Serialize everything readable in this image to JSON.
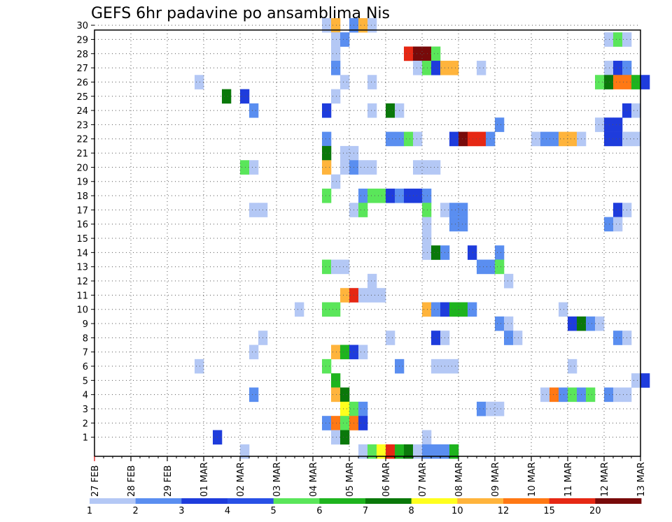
{
  "chart_data": {
    "type": "heatmap",
    "title": "GEFS 6hr padavine po ansamblima Nis",
    "xlabel": "",
    "ylabel": "",
    "x_tick_labels": [
      "27 FEB",
      "28 FEB",
      "29 FEB",
      "01 MAR",
      "02 MAR",
      "03 MAR",
      "04 MAR",
      "05 MAR",
      "06 MAR",
      "07 MAR",
      "08 MAR",
      "09 MAR",
      "10 MAR",
      "11 MAR",
      "12 MAR",
      "13 MAR"
    ],
    "y_tick_labels": [
      "1",
      "2",
      "3",
      "4",
      "5",
      "6",
      "7",
      "8",
      "9",
      "10",
      "11",
      "12",
      "13",
      "14",
      "15",
      "16",
      "17",
      "18",
      "19",
      "20",
      "21",
      "22",
      "23",
      "24",
      "25",
      "26",
      "27",
      "28",
      "29",
      "30"
    ],
    "x_unit": "6-hour step (4 steps per day), step 0 = 27 FEB 00Z",
    "ylim": [
      0,
      30
    ],
    "xlim": [
      0,
      60
    ],
    "grid": true,
    "legend": {
      "labels": [
        "1",
        "2",
        "3",
        "4",
        "5",
        "6",
        "7",
        "8",
        "10",
        "12",
        "15",
        "20"
      ],
      "colors": [
        "#b4c8f5",
        "#5a8ef0",
        "#1e3cdc",
        "#2850e6",
        "#5ae65a",
        "#1eb41e",
        "#0a780a",
        "#ffff1e",
        "#ffb43c",
        "#ff7814",
        "#e62814",
        "#780a0a"
      ]
    },
    "levels": [
      "#b4c8f5",
      "#5a8ef0",
      "#1e3cdc",
      "#5ae65a",
      "#1eb41e",
      "#0a780a",
      "#ffff1e",
      "#ffb43c",
      "#ff7814",
      "#e62814",
      "#780a0a"
    ],
    "cells": [
      [
        30,
        25,
        0
      ],
      [
        30,
        26,
        7
      ],
      [
        30,
        28,
        1
      ],
      [
        30,
        29,
        7
      ],
      [
        30,
        30,
        0
      ],
      [
        29,
        26,
        0
      ],
      [
        29,
        27,
        1
      ],
      [
        29,
        56,
        0
      ],
      [
        29,
        57,
        3
      ],
      [
        29,
        58,
        0
      ],
      [
        28,
        26,
        0
      ],
      [
        28,
        34,
        9
      ],
      [
        28,
        35,
        10
      ],
      [
        28,
        36,
        10
      ],
      [
        28,
        37,
        3
      ],
      [
        27,
        26,
        1
      ],
      [
        27,
        35,
        0
      ],
      [
        27,
        36,
        3
      ],
      [
        27,
        37,
        2
      ],
      [
        27,
        38,
        7
      ],
      [
        27,
        39,
        7
      ],
      [
        27,
        42,
        0
      ],
      [
        27,
        56,
        0
      ],
      [
        27,
        57,
        2
      ],
      [
        27,
        58,
        1
      ],
      [
        26,
        11,
        0
      ],
      [
        26,
        27,
        0
      ],
      [
        26,
        30,
        0
      ],
      [
        26,
        55,
        3
      ],
      [
        26,
        56,
        5
      ],
      [
        26,
        57,
        8
      ],
      [
        26,
        58,
        8
      ],
      [
        26,
        59,
        4
      ],
      [
        26,
        60,
        2
      ],
      [
        25,
        14,
        5
      ],
      [
        25,
        16,
        2
      ],
      [
        25,
        26,
        0
      ],
      [
        24,
        17,
        1
      ],
      [
        24,
        25,
        2
      ],
      [
        24,
        30,
        0
      ],
      [
        24,
        32,
        5
      ],
      [
        24,
        33,
        0
      ],
      [
        24,
        58,
        2
      ],
      [
        24,
        59,
        0
      ],
      [
        23,
        44,
        1
      ],
      [
        23,
        55,
        0
      ],
      [
        23,
        56,
        2
      ],
      [
        23,
        57,
        2
      ],
      [
        22,
        25,
        1
      ],
      [
        22,
        32,
        1
      ],
      [
        22,
        33,
        1
      ],
      [
        22,
        34,
        3
      ],
      [
        22,
        35,
        0
      ],
      [
        22,
        39,
        2
      ],
      [
        22,
        40,
        10
      ],
      [
        22,
        41,
        9
      ],
      [
        22,
        42,
        9
      ],
      [
        22,
        43,
        1
      ],
      [
        22,
        48,
        0
      ],
      [
        22,
        49,
        1
      ],
      [
        22,
        50,
        1
      ],
      [
        22,
        51,
        7
      ],
      [
        22,
        52,
        7
      ],
      [
        22,
        53,
        0
      ],
      [
        22,
        56,
        2
      ],
      [
        22,
        57,
        2
      ],
      [
        22,
        58,
        0
      ],
      [
        22,
        59,
        0
      ],
      [
        21,
        25,
        5
      ],
      [
        21,
        27,
        0
      ],
      [
        21,
        28,
        0
      ],
      [
        20,
        16,
        3
      ],
      [
        20,
        17,
        0
      ],
      [
        20,
        25,
        7
      ],
      [
        20,
        27,
        0
      ],
      [
        20,
        28,
        1
      ],
      [
        20,
        29,
        0
      ],
      [
        20,
        30,
        0
      ],
      [
        20,
        35,
        0
      ],
      [
        20,
        36,
        0
      ],
      [
        20,
        37,
        0
      ],
      [
        19,
        26,
        0
      ],
      [
        18,
        25,
        3
      ],
      [
        18,
        29,
        1
      ],
      [
        18,
        30,
        3
      ],
      [
        18,
        31,
        3
      ],
      [
        18,
        32,
        2
      ],
      [
        18,
        33,
        1
      ],
      [
        18,
        34,
        2
      ],
      [
        18,
        35,
        2
      ],
      [
        18,
        36,
        1
      ],
      [
        17,
        17,
        0
      ],
      [
        17,
        18,
        0
      ],
      [
        17,
        28,
        0
      ],
      [
        17,
        29,
        3
      ],
      [
        17,
        36,
        3
      ],
      [
        17,
        38,
        0
      ],
      [
        17,
        39,
        1
      ],
      [
        17,
        40,
        1
      ],
      [
        17,
        57,
        2
      ],
      [
        17,
        58,
        0
      ],
      [
        16,
        36,
        0
      ],
      [
        16,
        39,
        1
      ],
      [
        16,
        40,
        1
      ],
      [
        16,
        56,
        1
      ],
      [
        16,
        57,
        0
      ],
      [
        15,
        36,
        0
      ],
      [
        14,
        36,
        0
      ],
      [
        14,
        37,
        5
      ],
      [
        14,
        38,
        1
      ],
      [
        14,
        41,
        2
      ],
      [
        14,
        44,
        1
      ],
      [
        13,
        25,
        3
      ],
      [
        13,
        26,
        0
      ],
      [
        13,
        27,
        0
      ],
      [
        13,
        42,
        1
      ],
      [
        13,
        43,
        1
      ],
      [
        13,
        44,
        3
      ],
      [
        12,
        30,
        0
      ],
      [
        12,
        45,
        0
      ],
      [
        11,
        27,
        7
      ],
      [
        11,
        28,
        9
      ],
      [
        11,
        29,
        0
      ],
      [
        11,
        30,
        0
      ],
      [
        11,
        31,
        0
      ],
      [
        10,
        22,
        0
      ],
      [
        10,
        25,
        3
      ],
      [
        10,
        26,
        3
      ],
      [
        10,
        36,
        7
      ],
      [
        10,
        37,
        1
      ],
      [
        10,
        38,
        2
      ],
      [
        10,
        39,
        4
      ],
      [
        10,
        40,
        4
      ],
      [
        10,
        41,
        1
      ],
      [
        10,
        51,
        0
      ],
      [
        9,
        44,
        1
      ],
      [
        9,
        45,
        0
      ],
      [
        9,
        52,
        2
      ],
      [
        9,
        53,
        5
      ],
      [
        9,
        54,
        1
      ],
      [
        9,
        55,
        0
      ],
      [
        8,
        18,
        0
      ],
      [
        8,
        32,
        0
      ],
      [
        8,
        37,
        2
      ],
      [
        8,
        38,
        0
      ],
      [
        8,
        45,
        1
      ],
      [
        8,
        46,
        0
      ],
      [
        8,
        57,
        1
      ],
      [
        8,
        58,
        0
      ],
      [
        7,
        17,
        0
      ],
      [
        7,
        26,
        7
      ],
      [
        7,
        27,
        4
      ],
      [
        7,
        28,
        2
      ],
      [
        7,
        29,
        0
      ],
      [
        6,
        11,
        0
      ],
      [
        6,
        25,
        3
      ],
      [
        6,
        33,
        1
      ],
      [
        6,
        37,
        0
      ],
      [
        6,
        38,
        0
      ],
      [
        6,
        39,
        0
      ],
      [
        6,
        52,
        0
      ],
      [
        5,
        26,
        4
      ],
      [
        5,
        59,
        0
      ],
      [
        5,
        60,
        2
      ],
      [
        4,
        17,
        1
      ],
      [
        4,
        26,
        7
      ],
      [
        4,
        27,
        5
      ],
      [
        4,
        49,
        0
      ],
      [
        4,
        50,
        8
      ],
      [
        4,
        51,
        1
      ],
      [
        4,
        52,
        3
      ],
      [
        4,
        53,
        1
      ],
      [
        4,
        54,
        3
      ],
      [
        4,
        56,
        1
      ],
      [
        4,
        57,
        0
      ],
      [
        4,
        58,
        0
      ],
      [
        3,
        27,
        6
      ],
      [
        3,
        28,
        3
      ],
      [
        3,
        29,
        1
      ],
      [
        3,
        42,
        1
      ],
      [
        3,
        43,
        0
      ],
      [
        3,
        44,
        0
      ],
      [
        2,
        25,
        1
      ],
      [
        2,
        26,
        8
      ],
      [
        2,
        27,
        3
      ],
      [
        2,
        28,
        8
      ],
      [
        2,
        29,
        2
      ],
      [
        1,
        13,
        2
      ],
      [
        1,
        26,
        0
      ],
      [
        1,
        27,
        5
      ],
      [
        1,
        36,
        0
      ],
      [
        0,
        16,
        0
      ],
      [
        0,
        29,
        0
      ],
      [
        0,
        30,
        3
      ],
      [
        0,
        31,
        6
      ],
      [
        0,
        32,
        9
      ],
      [
        0,
        33,
        4
      ],
      [
        0,
        34,
        5
      ],
      [
        0,
        35,
        0
      ],
      [
        0,
        36,
        1
      ],
      [
        0,
        37,
        1
      ],
      [
        0,
        38,
        1
      ],
      [
        0,
        39,
        4
      ]
    ]
  }
}
